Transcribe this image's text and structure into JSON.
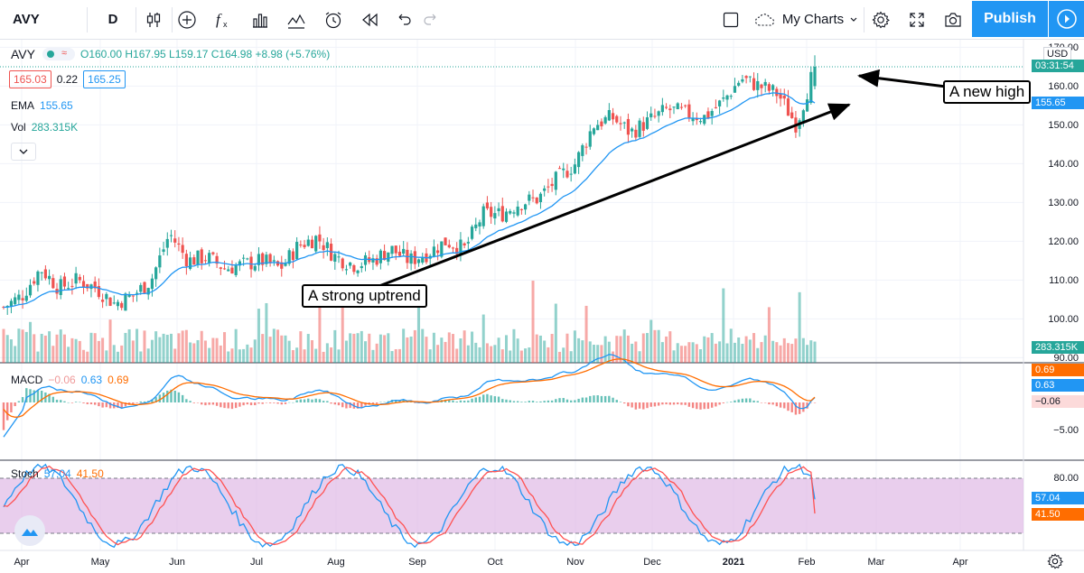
{
  "toolbar": {
    "symbol": "AVY",
    "interval": "D",
    "my_charts": "My Charts",
    "publish": "Publish",
    "icons": [
      "candles-icon",
      "add-indicator-icon",
      "fx-icon",
      "bar-chart-icon",
      "templates-icon",
      "alert-icon",
      "replay-icon",
      "undo-icon",
      "redo-icon",
      "layout-icon",
      "cloud-icon",
      "settings-icon",
      "fullscreen-icon",
      "camera-icon",
      "play-icon"
    ]
  },
  "legend": {
    "symbol": "AVY",
    "ohlc": "O160.00 H167.95 L159.17 C164.98 +8.98 (+5.76%)",
    "bid": "165.03",
    "spread": "0.22",
    "ask": "165.25",
    "ema_label": "EMA",
    "ema_value": "155.65",
    "vol_label": "Vol",
    "vol_value": "283.315K",
    "macd_label": "MACD",
    "macd_hist": "−0.06",
    "macd_value": "0.63",
    "macd_signal": "0.69",
    "stoch_label": "Stoch",
    "stoch_k": "57.04",
    "stoch_d": "41.50"
  },
  "annotations": {
    "new_high": "A new high",
    "uptrend": "A strong uptrend"
  },
  "price_axis": {
    "currency": "USD",
    "ticks": [
      "170.00",
      "160.00",
      "150.00",
      "140.00",
      "130.00",
      "120.00",
      "110.00",
      "100.00",
      "90.00"
    ],
    "countdown": "03:31:54",
    "ema_tag": "155.65",
    "vol_tag": "283.315K",
    "top_partial": "170.00",
    "new_high_partial": "160.00"
  },
  "macd_axis": {
    "ticks": [
      "−5.00"
    ],
    "tags": [
      "0.69",
      "0.63",
      "−0.06"
    ]
  },
  "stoch_axis": {
    "ticks": [
      "80.00"
    ],
    "tags": [
      "57.04",
      "41.50"
    ]
  },
  "time_axis": {
    "labels": [
      "Apr",
      "May",
      "Jun",
      "Jul",
      "Aug",
      "Sep",
      "Oct",
      "Nov",
      "Dec",
      "2021",
      "Feb",
      "Mar",
      "Apr"
    ]
  },
  "colors": {
    "up": "#26a69a",
    "down": "#ef5350",
    "ema": "#2196f3",
    "macd_line": "#2196f3",
    "signal_line": "#ff6d00",
    "stoch_k": "#2196f3",
    "stoch_d": "#ff5252",
    "stoch_band": "#e1bee7",
    "accent": "#2196f3"
  },
  "chart_data": {
    "type": "candlestick",
    "symbol": "AVY",
    "interval": "D",
    "ylim": [
      90,
      170
    ],
    "close_path": [
      [
        "2020-03-30",
        103
      ],
      [
        "2020-04-06",
        106
      ],
      [
        "2020-04-13",
        113
      ],
      [
        "2020-04-20",
        108
      ],
      [
        "2020-04-27",
        110
      ],
      [
        "2020-05-04",
        108
      ],
      [
        "2020-05-11",
        104
      ],
      [
        "2020-05-18",
        106
      ],
      [
        "2020-05-25",
        110
      ],
      [
        "2020-06-01",
        122
      ],
      [
        "2020-06-08",
        115
      ],
      [
        "2020-06-15",
        116
      ],
      [
        "2020-06-22",
        113
      ],
      [
        "2020-06-29",
        114
      ],
      [
        "2020-07-06",
        115
      ],
      [
        "2020-07-13",
        113
      ],
      [
        "2020-07-20",
        119
      ],
      [
        "2020-07-27",
        121
      ],
      [
        "2020-08-03",
        116
      ],
      [
        "2020-08-10",
        114
      ],
      [
        "2020-08-17",
        115
      ],
      [
        "2020-08-24",
        118
      ],
      [
        "2020-08-31",
        115
      ],
      [
        "2020-09-07",
        117
      ],
      [
        "2020-09-14",
        120
      ],
      [
        "2020-09-21",
        118
      ],
      [
        "2020-09-28",
        127
      ],
      [
        "2020-10-05",
        127
      ],
      [
        "2020-10-12",
        130
      ],
      [
        "2020-10-19",
        131
      ],
      [
        "2020-10-26",
        136
      ],
      [
        "2020-11-02",
        140
      ],
      [
        "2020-11-09",
        150
      ],
      [
        "2020-11-16",
        152
      ],
      [
        "2020-11-23",
        148
      ],
      [
        "2020-11-30",
        151
      ],
      [
        "2020-12-07",
        154
      ],
      [
        "2020-12-14",
        153
      ],
      [
        "2020-12-21",
        152
      ],
      [
        "2020-12-28",
        156
      ],
      [
        "2021-01-04",
        162
      ],
      [
        "2021-01-11",
        160
      ],
      [
        "2021-01-18",
        158
      ],
      [
        "2021-01-25",
        150
      ],
      [
        "2021-02-01",
        164.98
      ]
    ],
    "last": {
      "open": 160.0,
      "high": 167.95,
      "low": 159.17,
      "close": 164.98,
      "change": 8.98,
      "change_pct": 5.76
    },
    "ema": 155.65,
    "volume": "283.315K",
    "macd": {
      "hist": -0.06,
      "macd": 0.63,
      "signal": 0.69
    },
    "stoch": {
      "k": 57.04,
      "d": 41.5,
      "upper": 80,
      "lower": 20
    }
  }
}
